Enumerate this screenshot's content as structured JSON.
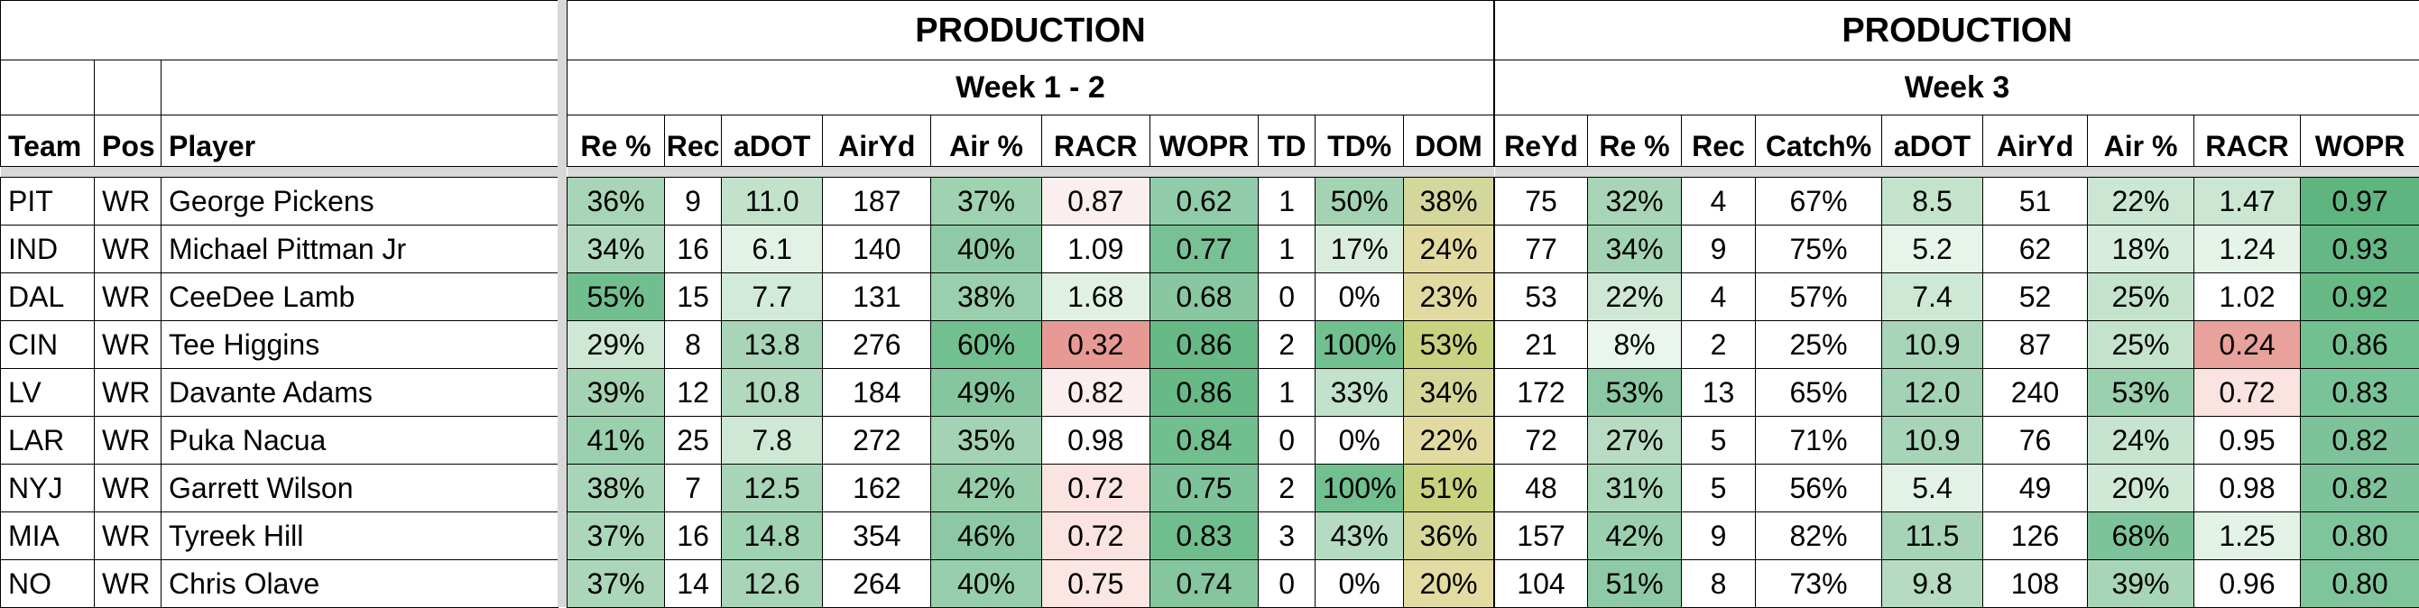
{
  "players": {
    "header": {
      "team": "Team",
      "pos": "Pos",
      "player": "Player"
    },
    "rows": [
      {
        "team": "PIT",
        "pos": "WR",
        "player": "George Pickens"
      },
      {
        "team": "IND",
        "pos": "WR",
        "player": "Michael Pittman Jr"
      },
      {
        "team": "DAL",
        "pos": "WR",
        "player": "CeeDee Lamb"
      },
      {
        "team": "CIN",
        "pos": "WR",
        "player": "Tee Higgins"
      },
      {
        "team": "LV",
        "pos": "WR",
        "player": "Davante Adams"
      },
      {
        "team": "LAR",
        "pos": "WR",
        "player": "Puka Nacua"
      },
      {
        "team": "NYJ",
        "pos": "WR",
        "player": "Garrett Wilson"
      },
      {
        "team": "MIA",
        "pos": "WR",
        "player": "Tyreek Hill"
      },
      {
        "team": "NO",
        "pos": "WR",
        "player": "Chris Olave"
      }
    ]
  },
  "sections": [
    {
      "title": "PRODUCTION",
      "subtitle": "Week 1 - 2",
      "columns": [
        "Re %",
        "Rec",
        "aDOT",
        "AirYd",
        "Air %",
        "RACR",
        "WOPR",
        "TD",
        "TD%",
        "DOM"
      ],
      "rows": [
        [
          "36%",
          "9",
          "11.0",
          "187",
          "37%",
          "0.87",
          "0.62",
          "1",
          "50%",
          "38%"
        ],
        [
          "34%",
          "16",
          "6.1",
          "140",
          "40%",
          "1.09",
          "0.77",
          "1",
          "17%",
          "24%"
        ],
        [
          "55%",
          "15",
          "7.7",
          "131",
          "38%",
          "1.68",
          "0.68",
          "0",
          "0%",
          "23%"
        ],
        [
          "29%",
          "8",
          "13.8",
          "276",
          "60%",
          "0.32",
          "0.86",
          "2",
          "100%",
          "53%"
        ],
        [
          "39%",
          "12",
          "10.8",
          "184",
          "49%",
          "0.82",
          "0.86",
          "1",
          "33%",
          "34%"
        ],
        [
          "41%",
          "25",
          "7.8",
          "272",
          "35%",
          "0.98",
          "0.84",
          "0",
          "0%",
          "22%"
        ],
        [
          "38%",
          "7",
          "12.5",
          "162",
          "42%",
          "0.72",
          "0.75",
          "2",
          "100%",
          "51%"
        ],
        [
          "37%",
          "16",
          "14.8",
          "354",
          "46%",
          "0.72",
          "0.83",
          "3",
          "43%",
          "36%"
        ],
        [
          "37%",
          "14",
          "12.6",
          "264",
          "40%",
          "0.75",
          "0.74",
          "0",
          "0%",
          "20%"
        ]
      ],
      "colors": [
        [
          "#a8d5b7",
          "#ffffff",
          "#c2e2cb",
          "#ffffff",
          "#9fd2b0",
          "#fbeeee",
          "#91ccaa",
          "#ffffff",
          "#a4d3b4",
          "#d3d79c"
        ],
        [
          "#b3dac1",
          "#ffffff",
          "#e2f2e7",
          "#ffffff",
          "#8fcaa6",
          "#ffffff",
          "#78c195",
          "#ffffff",
          "#d9ecdd",
          "#e1dba1"
        ],
        [
          "#71bf8e",
          "#ffffff",
          "#d2ead9",
          "#ffffff",
          "#99cfac",
          "#e0f1e4",
          "#88c7a0",
          "#ffffff",
          "#ffffff",
          "#e1dba1"
        ],
        [
          "#cfe8d6",
          "#ffffff",
          "#a8d5b7",
          "#ffffff",
          "#72bf90",
          "#e79a94",
          "#67b986",
          "#ffffff",
          "#72bf90",
          "#c9d27f"
        ],
        [
          "#a4d3b4",
          "#ffffff",
          "#b0d9bd",
          "#ffffff",
          "#86c69f",
          "#fbeeee",
          "#67b986",
          "#ffffff",
          "#c2e2cb",
          "#d5d798"
        ],
        [
          "#9bd0ae",
          "#ffffff",
          "#cfe8d6",
          "#ffffff",
          "#a3d3b4",
          "#ffffff",
          "#71bf8e",
          "#ffffff",
          "#ffffff",
          "#e1dba1"
        ],
        [
          "#a8d5b7",
          "#ffffff",
          "#a8d5b7",
          "#ffffff",
          "#94cda8",
          "#fbe3e2",
          "#7dc299",
          "#ffffff",
          "#72bf90",
          "#c9d27f"
        ],
        [
          "#abd6b9",
          "#ffffff",
          "#9fd2b0",
          "#ffffff",
          "#8bc8a3",
          "#fbe3e2",
          "#70be8e",
          "#ffffff",
          "#b5dbc2",
          "#d4d798"
        ],
        [
          "#abd6b9",
          "#ffffff",
          "#a8d5b7",
          "#ffffff",
          "#97ceab",
          "#fbe6e4",
          "#85c69e",
          "#ffffff",
          "#ffffff",
          "#e2dca3"
        ]
      ]
    },
    {
      "title": "PRODUCTION",
      "subtitle": "Week 3",
      "columns": [
        "ReYd",
        "Re %",
        "Rec",
        "Catch%",
        "aDOT",
        "AirYd",
        "Air %",
        "RACR",
        "WOPR"
      ],
      "rows": [
        [
          "75",
          "32%",
          "4",
          "67%",
          "8.5",
          "51",
          "22%",
          "1.47",
          "0.97"
        ],
        [
          "77",
          "34%",
          "9",
          "75%",
          "5.2",
          "62",
          "18%",
          "1.24",
          "0.93"
        ],
        [
          "53",
          "22%",
          "4",
          "57%",
          "7.4",
          "52",
          "25%",
          "1.02",
          "0.92"
        ],
        [
          "21",
          "8%",
          "2",
          "25%",
          "10.9",
          "87",
          "25%",
          "0.24",
          "0.86"
        ],
        [
          "172",
          "53%",
          "13",
          "65%",
          "12.0",
          "240",
          "53%",
          "0.72",
          "0.83"
        ],
        [
          "72",
          "27%",
          "5",
          "71%",
          "10.9",
          "76",
          "24%",
          "0.95",
          "0.82"
        ],
        [
          "48",
          "31%",
          "5",
          "56%",
          "5.4",
          "49",
          "20%",
          "0.98",
          "0.82"
        ],
        [
          "157",
          "42%",
          "9",
          "82%",
          "11.5",
          "126",
          "68%",
          "1.25",
          "0.80"
        ],
        [
          "104",
          "51%",
          "8",
          "73%",
          "9.8",
          "108",
          "39%",
          "0.96",
          "0.80"
        ]
      ],
      "colors": [
        [
          "#ffffff",
          "#a8d5b7",
          "#ffffff",
          "#ffffff",
          "#c4e3cd",
          "#ffffff",
          "#cbe7d3",
          "#cbe7d3",
          "#5fb580"
        ],
        [
          "#ffffff",
          "#a3d3b4",
          "#ffffff",
          "#ffffff",
          "#e6f4ea",
          "#ffffff",
          "#d6ecdd",
          "#e5f3e9",
          "#65b885"
        ],
        [
          "#ffffff",
          "#cfe8d6",
          "#ffffff",
          "#ffffff",
          "#cde8d4",
          "#ffffff",
          "#c4e3cd",
          "#ffffff",
          "#67b986"
        ],
        [
          "#ffffff",
          "#eaf5ed",
          "#ffffff",
          "#ffffff",
          "#a8d5b7",
          "#ffffff",
          "#c4e3cd",
          "#e8a29b",
          "#72bf90"
        ],
        [
          "#ffffff",
          "#8bc8a3",
          "#ffffff",
          "#ffffff",
          "#a3d3b4",
          "#ffffff",
          "#9bd0ae",
          "#fbe3e2",
          "#7ac297"
        ],
        [
          "#ffffff",
          "#b8dcc3",
          "#ffffff",
          "#ffffff",
          "#a8d5b7",
          "#ffffff",
          "#c6e4cf",
          "#ffffff",
          "#7dc299"
        ],
        [
          "#ffffff",
          "#aad6b9",
          "#ffffff",
          "#ffffff",
          "#e3f2e7",
          "#ffffff",
          "#d0e9d7",
          "#ffffff",
          "#7dc299"
        ],
        [
          "#ffffff",
          "#9bd0ae",
          "#ffffff",
          "#ffffff",
          "#a7d4b6",
          "#ffffff",
          "#7dc299",
          "#e3f2e7",
          "#80c49b"
        ],
        [
          "#ffffff",
          "#8fcaa6",
          "#ffffff",
          "#ffffff",
          "#b6dbc2",
          "#ffffff",
          "#a8d5b7",
          "#ffffff",
          "#80c49b"
        ]
      ]
    }
  ]
}
